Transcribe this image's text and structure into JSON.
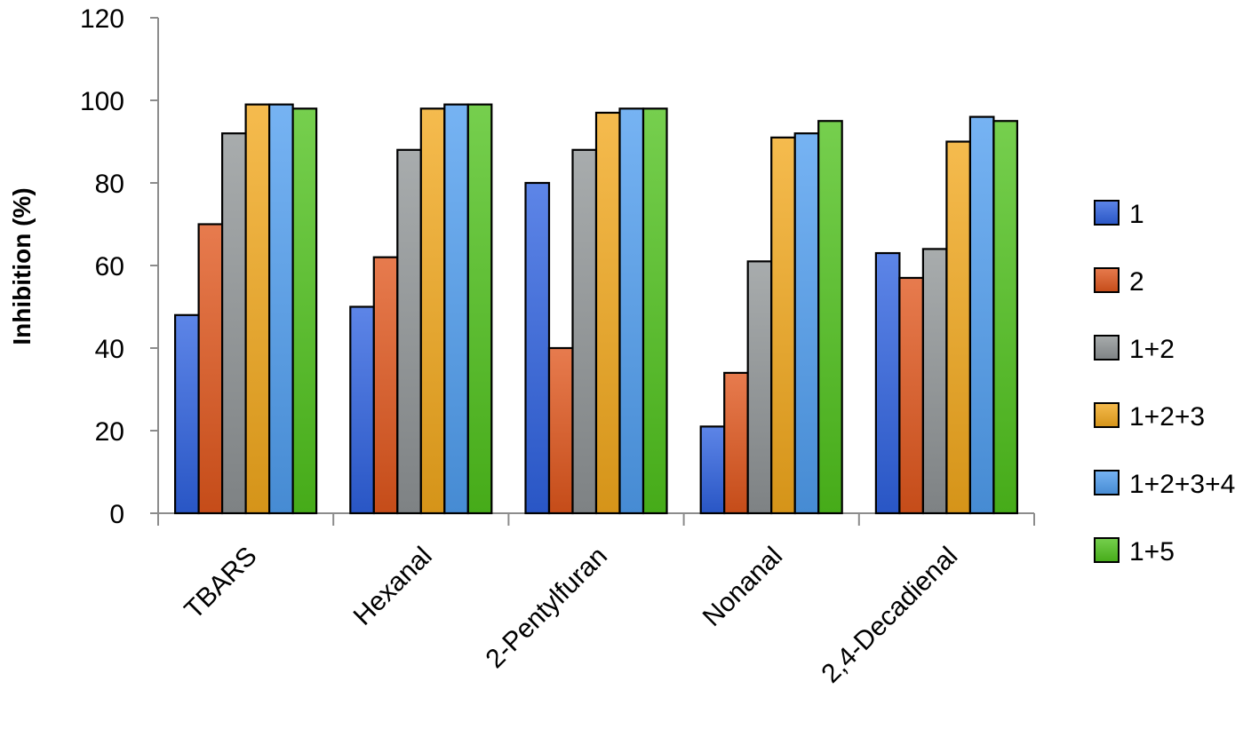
{
  "chart_data": {
    "type": "bar",
    "title": "",
    "xlabel": "",
    "ylabel": "Inhibition (%)",
    "ylim": [
      0,
      120
    ],
    "yticks": [
      0,
      20,
      40,
      60,
      80,
      100,
      120
    ],
    "categories": [
      "TBARS",
      "Hexanal",
      "2-Pentylfuran",
      "Nonanal",
      "2,4-Decadienal"
    ],
    "series": [
      {
        "name": "1",
        "color": "#2f62e0",
        "values": [
          48,
          50,
          80,
          21,
          63
        ]
      },
      {
        "name": "2",
        "color": "#e0561c",
        "values": [
          70,
          62,
          40,
          34,
          57
        ]
      },
      {
        "name": "1+2",
        "color": "#8f9496",
        "values": [
          92,
          88,
          88,
          61,
          64
        ]
      },
      {
        "name": "1+2+3",
        "color": "#f2a81c",
        "values": [
          99,
          98,
          97,
          91,
          90
        ]
      },
      {
        "name": "1+2+3+4",
        "color": "#4f9ef0",
        "values": [
          99,
          99,
          98,
          92,
          96
        ]
      },
      {
        "name": "1+5",
        "color": "#4fc21c",
        "values": [
          98,
          99,
          98,
          95,
          95
        ]
      }
    ],
    "grid": false,
    "legend_position": "right"
  }
}
